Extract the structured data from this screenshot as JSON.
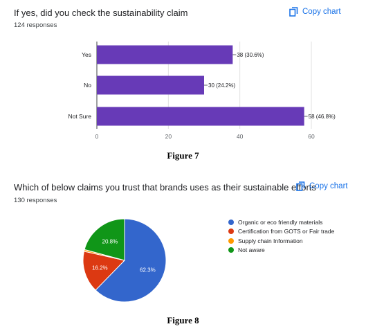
{
  "figure7": {
    "title": "If yes, did you check the sustainability claim",
    "responses": "124 responses",
    "copy_label": "Copy chart",
    "caption": "Figure 7"
  },
  "figure8": {
    "title": "Which of below claims you trust that brands uses as their sustainable efforts",
    "responses": "130 responses",
    "copy_label": "Copy chart",
    "caption": "Figure 8"
  },
  "icons": {
    "copy": "copy-icon"
  },
  "colors": {
    "accent": "#1a73e8",
    "bar": "#673ab7"
  },
  "chart_data": [
    {
      "type": "bar",
      "orientation": "horizontal",
      "categories": [
        "Yes",
        "No",
        "Not Sure"
      ],
      "values": [
        38,
        30,
        58
      ],
      "data_labels": [
        "38 (30.6%)",
        "30 (24.2%)",
        "58 (46.8%)"
      ],
      "xlim": [
        0,
        60
      ],
      "xticks": [
        "0",
        "20",
        "40",
        "60"
      ],
      "grid": true,
      "color": "#673ab7"
    },
    {
      "type": "pie",
      "labels": [
        "Organic or eco friendly materials",
        "Certification from GOTS or Fair trade",
        "Supply chain Information",
        "Not aware"
      ],
      "values": [
        62.3,
        16.2,
        0.7,
        20.8
      ],
      "slice_labels": [
        "62.3%",
        "16.2%",
        "",
        "20.8%"
      ],
      "colors": [
        "#3366cc",
        "#dc3912",
        "#ff9900",
        "#109618"
      ],
      "legend": "right"
    }
  ]
}
